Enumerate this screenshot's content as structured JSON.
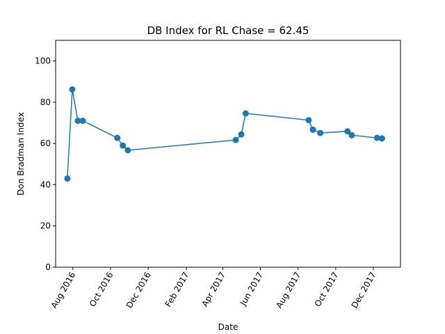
{
  "chart_data": {
    "type": "line",
    "title": "DB Index for RL Chase = 62.45",
    "xlabel": "Date",
    "ylabel": "Don Bradman Index",
    "ylim": [
      0,
      110
    ],
    "xlim": [
      "2016-07-04",
      "2018-01-14"
    ],
    "y_ticks": [
      0,
      20,
      40,
      60,
      80,
      100
    ],
    "x_ticks": [
      {
        "date": "2016-08-01",
        "label": "Aug 2016"
      },
      {
        "date": "2016-10-01",
        "label": "Oct 2016"
      },
      {
        "date": "2016-12-01",
        "label": "Dec 2016"
      },
      {
        "date": "2017-02-01",
        "label": "Feb 2017"
      },
      {
        "date": "2017-04-01",
        "label": "Apr 2017"
      },
      {
        "date": "2017-06-01",
        "label": "Jun 2017"
      },
      {
        "date": "2017-08-01",
        "label": "Aug 2017"
      },
      {
        "date": "2017-10-01",
        "label": "Oct 2017"
      },
      {
        "date": "2017-12-01",
        "label": "Dec 2017"
      }
    ],
    "grid": false,
    "color": "#1f77b4",
    "series": [
      {
        "x": [
          "2016-07-23",
          "2016-07-31",
          "2016-08-09",
          "2016-08-17",
          "2016-10-12",
          "2016-10-21",
          "2016-10-29",
          "2017-04-22",
          "2017-05-01",
          "2017-05-08",
          "2017-08-18",
          "2017-08-25",
          "2017-09-06",
          "2017-10-20",
          "2017-10-27",
          "2017-12-07",
          "2017-12-15"
        ],
        "y": [
          43.0,
          86.2,
          71.0,
          71.0,
          62.7,
          59.0,
          56.7,
          61.7,
          64.4,
          74.6,
          71.3,
          66.7,
          65.1,
          65.9,
          64.0,
          62.7,
          62.45
        ]
      }
    ]
  }
}
